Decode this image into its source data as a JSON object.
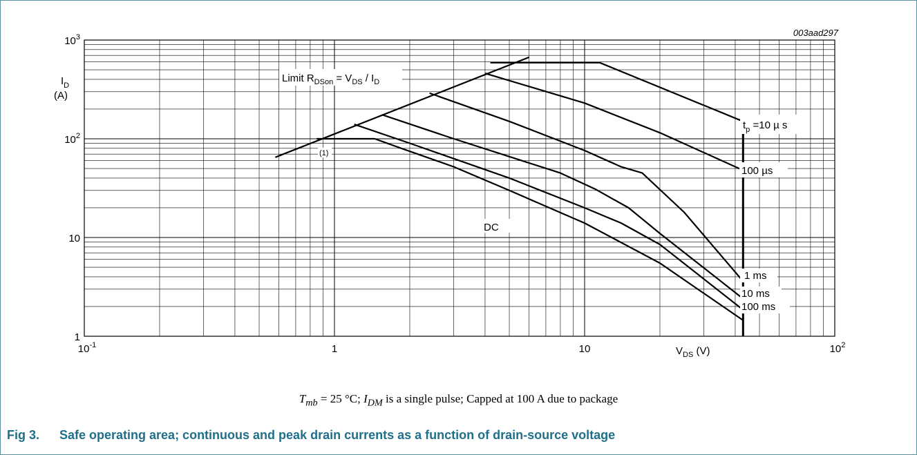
{
  "figure": {
    "code": "003aad297",
    "conditions": {
      "tmb_sym": "T",
      "tmb_sub": "mb",
      "tmb_rest": " = 25 °C; ",
      "idm_sym": "I",
      "idm_sub": "DM",
      "idm_rest": " is a single pulse; Capped at 100 A due to package"
    },
    "caption": {
      "number": "Fig 3.",
      "text": "Safe operating area; continuous and peak drain currents as a function of drain-source voltage"
    }
  },
  "chart_data": {
    "type": "line",
    "xscale": "log",
    "yscale": "log",
    "xlim": [
      0.1,
      100
    ],
    "ylim": [
      1,
      1000
    ],
    "grid": true,
    "xlabel": {
      "main": "V",
      "sub": "DS",
      "unit": " (V)"
    },
    "ylabel": {
      "main": "I",
      "sub": "D",
      "unit": "(A)"
    },
    "xticks": [
      {
        "value": 0.1,
        "base": "10",
        "exp": "-1"
      },
      {
        "value": 1,
        "base": "1",
        "exp": ""
      },
      {
        "value": 10,
        "base": "10",
        "exp": ""
      },
      {
        "value": 100,
        "base": "10",
        "exp": "2"
      }
    ],
    "yticks": [
      {
        "value": 1,
        "base": "1",
        "exp": ""
      },
      {
        "value": 10,
        "base": "10",
        "exp": ""
      },
      {
        "value": 100,
        "base": "10",
        "exp": "2"
      },
      {
        "value": 1000,
        "base": "10",
        "exp": "3"
      }
    ],
    "annotations": [
      {
        "id": "limit",
        "text": "Limit R",
        "sub1": "DSon",
        "mid": " = V",
        "sub2": "DS",
        "mid2": " / I",
        "sub3": "D"
      },
      {
        "id": "note1",
        "text": "(1)"
      },
      {
        "id": "dc",
        "text": "DC"
      }
    ],
    "series": [
      {
        "id": "rdson",
        "name": "",
        "points": [
          [
            0.58,
            65
          ],
          [
            6.0,
            670
          ]
        ]
      },
      {
        "id": "tp10us",
        "name": "t_p = 10 µs",
        "label_main": "t",
        "label_sub": "p",
        "label_rest": " =10 µ s",
        "points": [
          [
            4.2,
            590
          ],
          [
            5.0,
            590
          ],
          [
            11.5,
            590
          ],
          [
            43,
            150
          ]
        ]
      },
      {
        "id": "tp100us",
        "name": "100 µs",
        "points": [
          [
            4.0,
            460
          ],
          [
            10,
            230
          ],
          [
            20,
            115
          ],
          [
            43,
            48
          ]
        ]
      },
      {
        "id": "tp1ms",
        "name": "1 ms",
        "points": [
          [
            2.4,
            290
          ],
          [
            5,
            150
          ],
          [
            10,
            76
          ],
          [
            14,
            52
          ],
          [
            17,
            45
          ],
          [
            25,
            18
          ],
          [
            43,
            3.6
          ]
        ]
      },
      {
        "id": "tp10ms",
        "name": "10 ms",
        "points": [
          [
            1.55,
            175
          ],
          [
            3,
            100
          ],
          [
            8,
            45
          ],
          [
            11,
            31
          ],
          [
            15,
            20
          ],
          [
            20,
            11
          ],
          [
            43,
            2.4
          ]
        ]
      },
      {
        "id": "tp100ms",
        "name": "100 ms",
        "points": [
          [
            1.2,
            140
          ],
          [
            2,
            90
          ],
          [
            5,
            40
          ],
          [
            10,
            20
          ],
          [
            14,
            14
          ],
          [
            20,
            8.5
          ],
          [
            43,
            1.85
          ]
        ]
      },
      {
        "id": "dc",
        "name": "DC",
        "points": [
          [
            0.85,
            100
          ],
          [
            1.45,
            100
          ],
          [
            1.8,
            82
          ],
          [
            3,
            52
          ],
          [
            5,
            30
          ],
          [
            10,
            14
          ],
          [
            20,
            5.5
          ],
          [
            43,
            1.45
          ]
        ]
      }
    ],
    "vlimit": {
      "x": 43,
      "y": [
        1,
        150
      ]
    }
  }
}
